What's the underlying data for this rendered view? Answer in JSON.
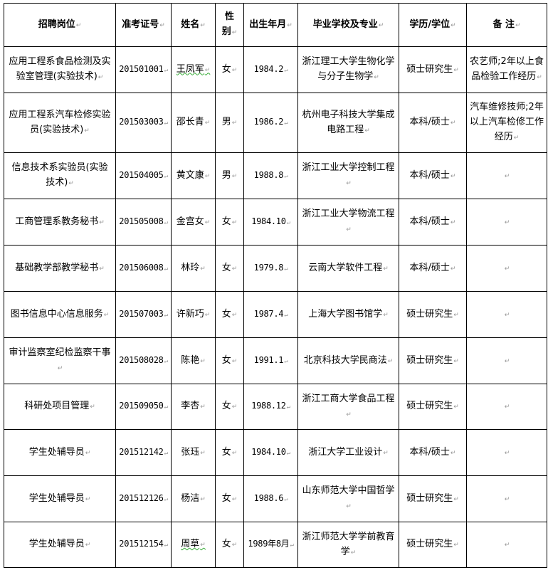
{
  "headers": [
    "招聘岗位",
    "准考证号",
    "姓名",
    "性别",
    "出生年月",
    "毕业学校及专业",
    "学历/学位",
    "备 注"
  ],
  "rows": [
    {
      "position": "应用工程系食品检测及实验室管理(实验技术)",
      "exam_no": "201501001",
      "name": "王凤军",
      "gender": "女",
      "birth": "1984.2",
      "school_major": "浙江理工大学生物化学与分子生物学",
      "degree": "硕士研究生",
      "remark": "农艺师;2年以上食品检验工作经历"
    },
    {
      "position": "应用工程系汽车检修实验员(实验技术)",
      "exam_no": "201503003",
      "name": "邵长青",
      "gender": "男",
      "birth": "1986.2",
      "school_major": "杭州电子科技大学集成电路工程",
      "degree": "本科/硕士",
      "remark": "汽车维修技师;2年以上汽车检修工作经历"
    },
    {
      "position": "信息技术系实验员(实验技术)",
      "exam_no": "201504005",
      "name": "黄文康",
      "gender": "男",
      "birth": "1988.8",
      "school_major": "浙江工业大学控制工程",
      "degree": "本科/硕士",
      "remark": ""
    },
    {
      "position": "工商管理系教务秘书",
      "exam_no": "201505008",
      "name": "金宫女",
      "gender": "女",
      "birth": "1984.10",
      "school_major": "浙江工业大学物流工程",
      "degree": "本科/硕士",
      "remark": ""
    },
    {
      "position": "基础教学部教学秘书",
      "exam_no": "201506008",
      "name": "林玲",
      "gender": "女",
      "birth": "1979.8",
      "school_major": "云南大学软件工程",
      "degree": "本科/硕士",
      "remark": ""
    },
    {
      "position": "图书信息中心信息服务",
      "exam_no": "201507003",
      "name": "许新巧",
      "gender": "女",
      "birth": "1987.4",
      "school_major": "上海大学图书馆学",
      "degree": "硕士研究生",
      "remark": ""
    },
    {
      "position": "审计监察室纪检监察干事",
      "exam_no": "201508028",
      "name": "陈艳",
      "gender": "女",
      "birth": "1991.1",
      "school_major": "北京科技大学民商法",
      "degree": "硕士研究生",
      "remark": ""
    },
    {
      "position": "科研处项目管理",
      "exam_no": "201509050",
      "name": "李杏",
      "gender": "女",
      "birth": "1988.12",
      "school_major": "浙江工商大学食品工程",
      "degree": "硕士研究生",
      "remark": ""
    },
    {
      "position": "学生处辅导员",
      "exam_no": "201512142",
      "name": "张珏",
      "gender": "女",
      "birth": "1984.10",
      "school_major": "浙江大学工业设计",
      "degree": "本科/硕士",
      "remark": ""
    },
    {
      "position": "学生处辅导员",
      "exam_no": "201512126",
      "name": "杨洁",
      "gender": "女",
      "birth": "1988.6",
      "school_major": "山东师范大学中国哲学",
      "degree": "硕士研究生",
      "remark": ""
    },
    {
      "position": "学生处辅导员",
      "exam_no": "201512154",
      "name": "周草",
      "gender": "女",
      "birth": "1989年8月",
      "school_major": "浙江师范大学学前教育学",
      "degree": "硕士研究生",
      "remark": ""
    }
  ]
}
